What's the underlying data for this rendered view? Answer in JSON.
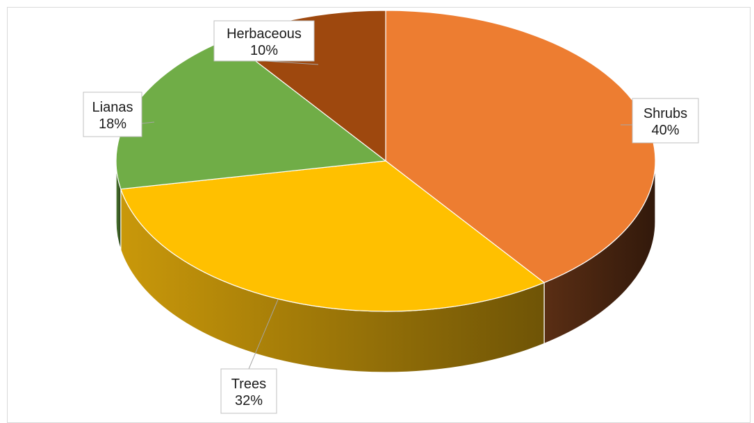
{
  "chart_data": {
    "type": "pie",
    "style": "3d",
    "title": "",
    "slices": [
      {
        "label": "Shrubs",
        "value": 40,
        "display": "40%",
        "color": "#ED7D31",
        "side_color": "#5A2E14"
      },
      {
        "label": "Trees",
        "value": 32,
        "display": "32%",
        "color": "#FFC000",
        "side_color": "#C9980A"
      },
      {
        "label": "Lianas",
        "value": 18,
        "display": "18%",
        "color": "#70AD47",
        "side_color": "#4E7A31"
      },
      {
        "label": "Herbaceous",
        "value": 10,
        "display": "10%",
        "color": "#9E480E",
        "side_color": "#5E2B08"
      }
    ],
    "legend": "none",
    "data_labels": "callouts with category name and percentage"
  }
}
